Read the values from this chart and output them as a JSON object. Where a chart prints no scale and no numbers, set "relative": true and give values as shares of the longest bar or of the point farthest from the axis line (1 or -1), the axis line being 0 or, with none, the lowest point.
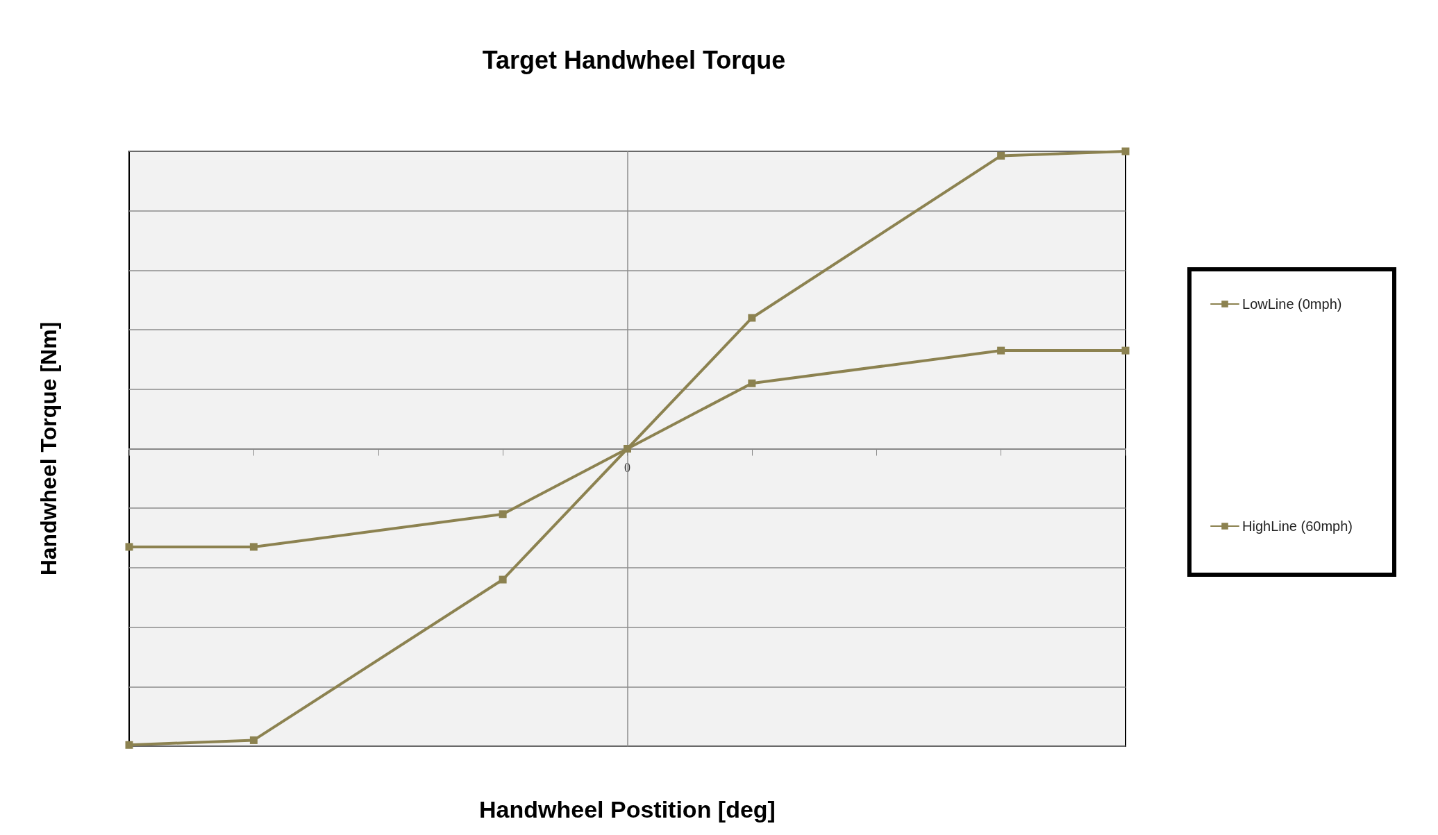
{
  "chart_data": {
    "type": "line",
    "title": "Target Handwheel Torque",
    "xlabel": "Handwheel Postition [deg]",
    "ylabel": "Handwheel Torque [Nm]",
    "categories": [
      null,
      null,
      null,
      null,
      null,
      null,
      null,
      null,
      null
    ],
    "annotations": [
      "0"
    ],
    "relative": true,
    "series": [
      {
        "name": "LowLine (0mph)",
        "color": "#8c8250",
        "values": [
          -0.33,
          -0.33,
          null,
          -0.22,
          0,
          0.22,
          null,
          0.33,
          0.33
        ]
      },
      {
        "name": "HighLine (60mph)",
        "color": "#8c8250",
        "values": [
          -0.996,
          -0.98,
          null,
          -0.44,
          0,
          0.44,
          null,
          0.985,
          1
        ]
      }
    ],
    "grid": "y",
    "legend": "right",
    "marker": "square",
    "line_style": "solid"
  }
}
